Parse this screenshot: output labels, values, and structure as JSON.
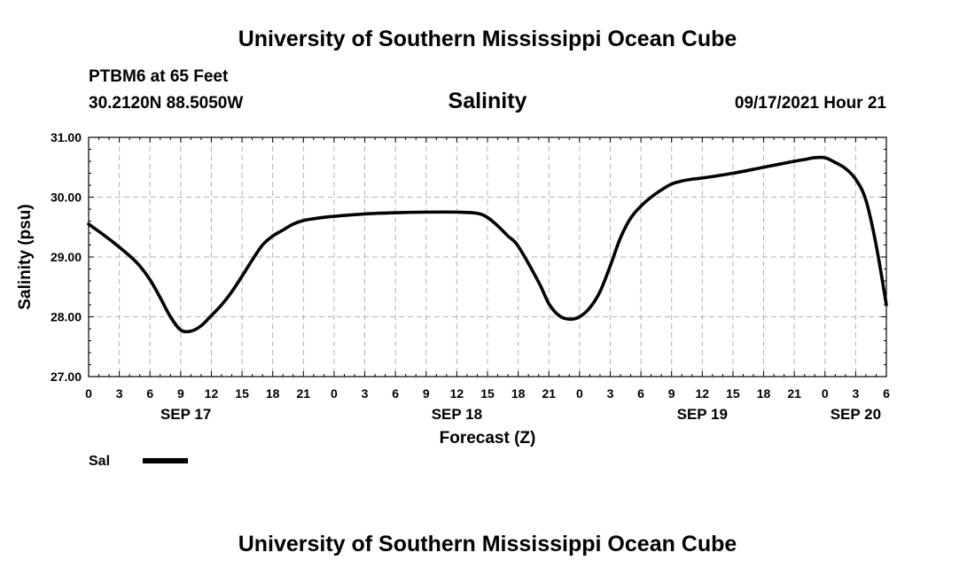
{
  "header": {
    "title": "University of Southern Mississippi Ocean Cube",
    "station": "PTBM6 at 65 Feet",
    "coordinates": "30.2120N  88.5050W",
    "datetime": "09/17/2021 Hour 21"
  },
  "footer": {
    "title": "University of Southern Mississippi Ocean Cube"
  },
  "chart_data": {
    "type": "line",
    "title": "Salinity",
    "xlabel": "Forecast (Z)",
    "ylabel": "Salinity (psu)",
    "ylim": [
      27.0,
      31.0
    ],
    "y_ticks": [
      "27.00",
      "28.00",
      "29.00",
      "30.00",
      "31.00"
    ],
    "y_tick_values": [
      27,
      28,
      29,
      30,
      31
    ],
    "xlim_hours": [
      0,
      78
    ],
    "x_tick_hours": [
      0,
      3,
      6,
      9,
      12,
      15,
      18,
      21,
      24,
      27,
      30,
      33,
      36,
      39,
      42,
      45,
      48,
      51,
      54,
      57,
      60,
      63,
      66,
      69,
      72,
      75,
      78
    ],
    "x_tick_labels": [
      "0",
      "3",
      "6",
      "9",
      "12",
      "15",
      "18",
      "21",
      "0",
      "3",
      "6",
      "9",
      "12",
      "15",
      "18",
      "21",
      "0",
      "3",
      "6",
      "9",
      "12",
      "15",
      "18",
      "21",
      "0",
      "3",
      "6"
    ],
    "date_labels": [
      {
        "label": "SEP 17",
        "hour": 9.5
      },
      {
        "label": "SEP 18",
        "hour": 36
      },
      {
        "label": "SEP 19",
        "hour": 60
      },
      {
        "label": "SEP 20",
        "hour": 75
      }
    ],
    "grid": true,
    "legend": [
      {
        "name": "Sal",
        "color": "#000000"
      }
    ],
    "series": [
      {
        "name": "Sal",
        "x": [
          0,
          2,
          4,
          5,
          6,
          7,
          8,
          9,
          10,
          11,
          12,
          13,
          14,
          15,
          16,
          17,
          18,
          19,
          20,
          21,
          22,
          24,
          27,
          30,
          33,
          36,
          38,
          39,
          40,
          41,
          42,
          44,
          45,
          46,
          47,
          48,
          49,
          50,
          51,
          52,
          53,
          54,
          55,
          56,
          57,
          58,
          59,
          60,
          63,
          66,
          69,
          70,
          71,
          72,
          73,
          74,
          75,
          76,
          77,
          78
        ],
        "values": [
          29.55,
          29.3,
          29.02,
          28.85,
          28.62,
          28.32,
          28.0,
          27.78,
          27.76,
          27.85,
          28.02,
          28.2,
          28.42,
          28.68,
          28.95,
          29.2,
          29.35,
          29.45,
          29.55,
          29.61,
          29.64,
          29.68,
          29.72,
          29.74,
          29.75,
          29.75,
          29.73,
          29.66,
          29.52,
          29.35,
          29.18,
          28.58,
          28.22,
          28.02,
          27.96,
          28.0,
          28.15,
          28.42,
          28.85,
          29.32,
          29.65,
          29.85,
          30.0,
          30.12,
          30.22,
          30.27,
          30.3,
          30.32,
          30.4,
          30.5,
          30.6,
          30.63,
          30.66,
          30.66,
          30.58,
          30.48,
          30.3,
          29.95,
          29.2,
          28.2
        ]
      }
    ]
  }
}
